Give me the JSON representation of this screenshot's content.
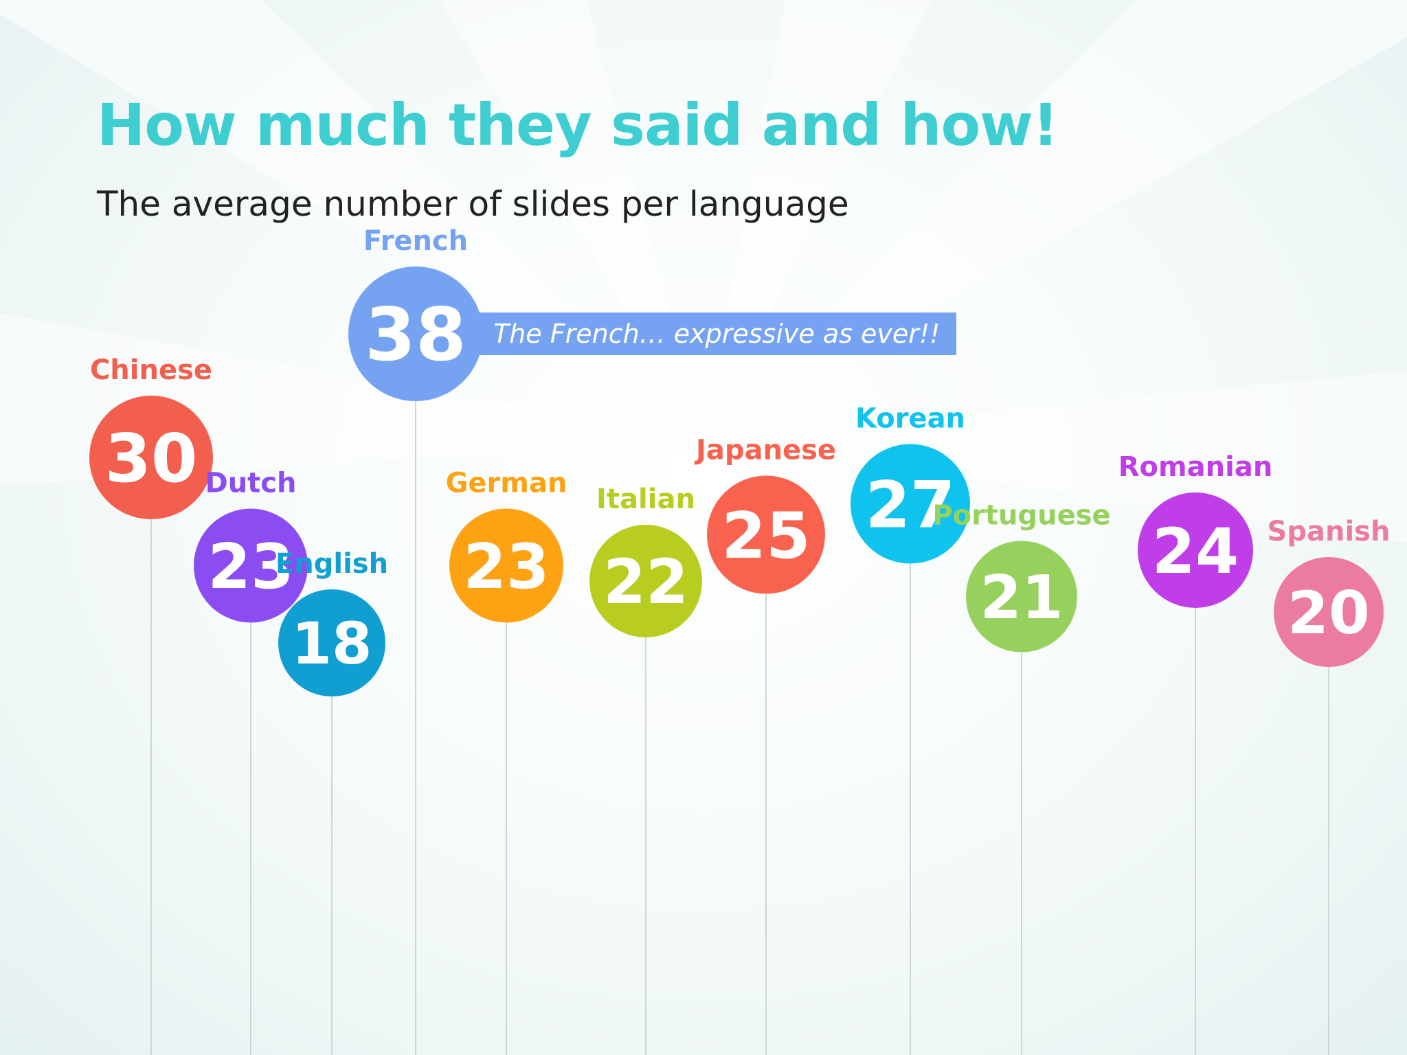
{
  "header": {
    "title": "How much they said and how!",
    "subtitle": "The average number of slides per language"
  },
  "colors": {
    "title": "#3ecdd0",
    "subtitle": "#222222",
    "stem": "#cfd6d6"
  },
  "chart_data": {
    "type": "scatter",
    "title": "How much they said and how!",
    "subtitle": "The average number of slides per language",
    "categories": [
      "Chinese",
      "Dutch",
      "English",
      "French",
      "German",
      "Italian",
      "Japanese",
      "Korean",
      "Portuguese",
      "Romanian",
      "Spanish"
    ],
    "values": [
      30,
      23,
      18,
      38,
      23,
      22,
      25,
      27,
      21,
      24,
      20
    ],
    "colors": [
      "#f25f4e",
      "#8b4cf2",
      "#119fd2",
      "#76a3f1",
      "#fda313",
      "#b8cd1f",
      "#f9624e",
      "#10c3ef",
      "#97d15d",
      "#bf3ee7",
      "#ec7ba3"
    ],
    "annotation": {
      "category": "French",
      "text": "The French… expressive as ever!!",
      "color": "#76a3f1"
    }
  }
}
